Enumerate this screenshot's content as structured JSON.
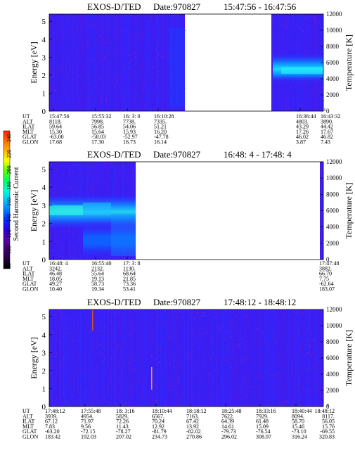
{
  "colorbar": {
    "label": "Second Harmonic Current",
    "ticks": [
      "240",
      "220",
      "200",
      "180",
      "160",
      "140",
      "120",
      "100",
      "80"
    ],
    "colors": [
      "#ff2000",
      "#ff6a00",
      "#ffb000",
      "#ffff00",
      "#60ff00",
      "#00ff60",
      "#00ffd0",
      "#00c8ff",
      "#0080ff",
      "#0030ff",
      "#2a00e0",
      "#5a00a8",
      "#400070",
      "#200040",
      "#000000"
    ]
  },
  "panels": [
    {
      "title": "EXOS-D/TED",
      "date": "Date:970827",
      "time_range": "15:47:56 - 16:47:56",
      "ylabel_left": "Energy [eV]",
      "ylabel_right": "Temperature [K]",
      "yticks_left": [
        "0",
        "1",
        "2",
        "3",
        "4",
        "5"
      ],
      "yticks_right": [
        "0",
        "2000",
        "4000",
        "6000",
        "8000",
        "10000",
        "12000"
      ],
      "row_labels": [
        "UT",
        "ALT",
        "ILAT",
        "MLT",
        "GLAT",
        "GLON"
      ],
      "columns": [
        {
          "values": [
            "15:47:56",
            "8118.",
            "59.64",
            "15.30",
            "-63.00",
            "17.68"
          ]
        },
        {
          "values": [
            "15:55:32",
            "7998.",
            "56.85",
            "15.64",
            "-58.03",
            "17.30"
          ]
        },
        {
          "values": [
            "16: 3: 0",
            "7738.",
            "54.06",
            "15.93",
            "-52.97",
            "16.73"
          ]
        },
        {
          "values": [
            "16:10:28",
            "7335.",
            "51.21",
            "16.20",
            "-47.78",
            "16.14"
          ]
        },
        {
          "values": [
            "16:36:44",
            "4803.",
            "43.29",
            "17.26",
            "46.02",
            "3.87"
          ]
        },
        {
          "values": [
            "16:43:32",
            "3890.",
            "44.42",
            "17.67",
            "46.82",
            "7.43"
          ]
        }
      ]
    },
    {
      "title": "EXOS-D/TED",
      "date": "Date:970827",
      "time_range": "16:48: 4 - 17:48: 4",
      "ylabel_left": "Energy [eV]",
      "ylabel_right": "Temperature [K]",
      "yticks_left": [
        "0",
        "1",
        "2",
        "3",
        "4",
        "5"
      ],
      "yticks_right": [
        "0",
        "2000",
        "4000",
        "6000",
        "8000",
        "10000",
        "12000"
      ],
      "row_labels": [
        "UT",
        "ALT",
        "ILAT",
        "MLT",
        "GLAT",
        "GLON"
      ],
      "columns": [
        {
          "values": [
            "16:48: 4",
            "3242.",
            "46.48",
            "18.05",
            "49.27",
            "10.40"
          ]
        },
        {
          "values": [
            "16:55:40",
            "2132.",
            "55.64",
            "19.13",
            "58.73",
            "19.34"
          ]
        },
        {
          "values": [
            "17: 3: 8",
            "1130.",
            "68.64",
            "21.85",
            "73.36",
            "53.41"
          ]
        },
        {
          "values": [
            "17:47:48",
            "3882.",
            "66.70",
            "7.75",
            "-62.64",
            "183.07"
          ]
        }
      ]
    },
    {
      "title": "EXOS-D/TED",
      "date": "Date:970827",
      "time_range": "17:48:12 - 18:48:12",
      "ylabel_left": "Energy [eV]",
      "ylabel_right": "Temperature [K]",
      "yticks_left": [
        "0",
        "1",
        "2",
        "3",
        "4",
        "5"
      ],
      "yticks_right": [
        "0",
        "2000",
        "4000",
        "6000",
        "8000",
        "10000",
        "12000"
      ],
      "row_labels": [
        "UT",
        "ALT",
        "ILAT",
        "MLT",
        "GLAT",
        "GLON"
      ],
      "columns": [
        {
          "values": [
            "17:48:12",
            "3939.",
            "67.12",
            "7.83",
            "-63.20",
            "183.42"
          ]
        },
        {
          "values": [
            "17:55:48",
            "4954.",
            "71.97",
            "9.56",
            "-72.15",
            "192.03"
          ]
        },
        {
          "values": [
            "18: 3:16",
            "5829.",
            "72.26",
            "11.43",
            "-78.27",
            "207.02"
          ]
        },
        {
          "values": [
            "18:10:44",
            "6567.",
            "70.24",
            "12.92",
            "-81.79",
            "234.73"
          ]
        },
        {
          "values": [
            "18:18:12",
            "7163.",
            "67.42",
            "13.92",
            "-82.02",
            "270.86"
          ]
        },
        {
          "values": [
            "18:25:48",
            "7622.",
            "64.39",
            "14.61",
            "-79.73",
            "296.02"
          ]
        },
        {
          "values": [
            "18:33:16",
            "7929.",
            "61.48",
            "15.09",
            "-76.54",
            "308.97"
          ]
        },
        {
          "values": [
            "18:40:44",
            "8094.",
            "58.70",
            "15.46",
            "-73.10",
            "316.24"
          ]
        },
        {
          "values": [
            "18:48:12",
            "8117.",
            "56.05",
            "15.76",
            "-69.55",
            "320.83"
          ]
        }
      ]
    }
  ],
  "chart_data": [
    {
      "type": "heatmap",
      "title": "EXOS-D/TED Date:970827 15:47:56 - 16:47:56",
      "xlabel": "UT",
      "ylabel": "Energy [eV]",
      "y2label": "Temperature [K]",
      "ylim": [
        0,
        5
      ],
      "y2lim": [
        0,
        12000
      ],
      "x_ticks": [
        "15:47:56",
        "15:55:32",
        "16: 3: 0",
        "16:10:28",
        "16:36:44",
        "16:43:32"
      ],
      "data_gaps": [
        [
          "16:19",
          "16:34"
        ]
      ],
      "colorbar_label": "Second Harmonic Current",
      "colorbar_range": [
        80,
        240
      ]
    },
    {
      "type": "heatmap",
      "title": "EXOS-D/TED Date:970827 16:48: 4 - 17:48: 4",
      "xlabel": "UT",
      "ylabel": "Energy [eV]",
      "y2label": "Temperature [K]",
      "ylim": [
        0,
        5
      ],
      "y2lim": [
        0,
        12000
      ],
      "x_ticks": [
        "16:48: 4",
        "16:55:40",
        "17: 3: 8",
        "17:47:48"
      ],
      "data_gaps": [
        [
          "17:06",
          "17:47"
        ]
      ],
      "colorbar_label": "Second Harmonic Current",
      "colorbar_range": [
        80,
        240
      ]
    },
    {
      "type": "heatmap",
      "title": "EXOS-D/TED Date:970827 17:48:12 - 18:48:12",
      "xlabel": "UT",
      "ylabel": "Energy [eV]",
      "y2label": "Temperature [K]",
      "ylim": [
        0,
        5
      ],
      "y2lim": [
        0,
        12000
      ],
      "x_ticks": [
        "17:48:12",
        "17:55:48",
        "18: 3:16",
        "18:10:44",
        "18:18:12",
        "18:25:48",
        "18:33:16",
        "18:40:44",
        "18:48:12"
      ],
      "data_gaps": [],
      "colorbar_label": "Second Harmonic Current",
      "colorbar_range": [
        80,
        240
      ]
    }
  ]
}
